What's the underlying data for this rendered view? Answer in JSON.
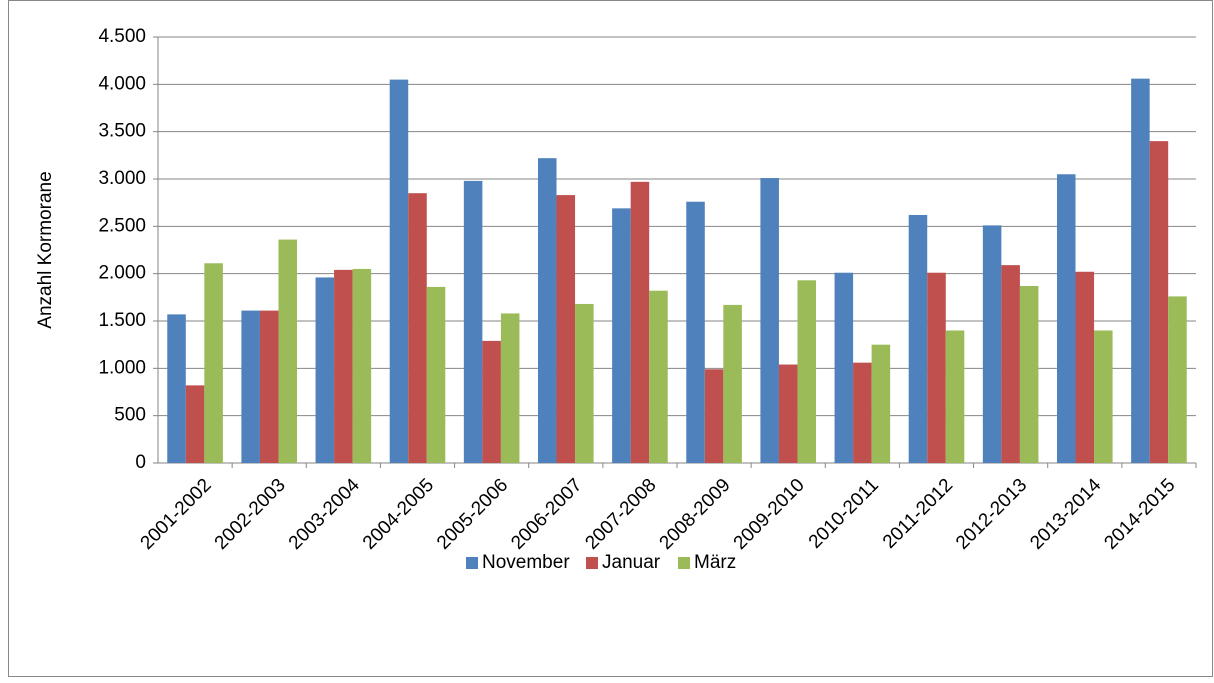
{
  "chart_data": {
    "type": "bar",
    "y_label": "Anzahl Kormorane",
    "categories": [
      "2001-2002",
      "2002-2003",
      "2003-2004",
      "2004-2005",
      "2005-2006",
      "2006-2007",
      "2007-2008",
      "2008-2009",
      "2009-2010",
      "2010-2011",
      "2011-2012",
      "2012-2013",
      "2013-2014",
      "2014-2015"
    ],
    "series": [
      {
        "name": "November",
        "color": "#4f81bd",
        "values": [
          1570,
          1610,
          1960,
          4050,
          2980,
          3220,
          2690,
          2760,
          3010,
          2010,
          2620,
          2510,
          3050,
          4060
        ]
      },
      {
        "name": "Januar",
        "color": "#c0504d",
        "values": [
          820,
          1610,
          2040,
          2850,
          1290,
          2830,
          2970,
          990,
          1040,
          1060,
          2010,
          2090,
          2020,
          3400
        ]
      },
      {
        "name": "März",
        "color": "#9bbb59",
        "values": [
          2110,
          2360,
          2050,
          1860,
          1580,
          1680,
          1820,
          1670,
          1930,
          1250,
          1400,
          1870,
          1400,
          1760
        ]
      }
    ],
    "ylim": [
      0,
      4500
    ],
    "yticks": [
      0,
      500,
      {
        "value": 1000,
        "label": "1.000"
      },
      {
        "value": 1500,
        "label": "1.500"
      },
      {
        "value": 2000,
        "label": "2.000"
      },
      {
        "value": 2500,
        "label": "2.500"
      },
      {
        "value": 3000,
        "label": "3.000"
      },
      {
        "value": 3500,
        "label": "3.500"
      },
      {
        "value": 4000,
        "label": "4.000"
      },
      {
        "value": 4500,
        "label": "4.500"
      }
    ],
    "grid": true,
    "legend": "bottom"
  }
}
